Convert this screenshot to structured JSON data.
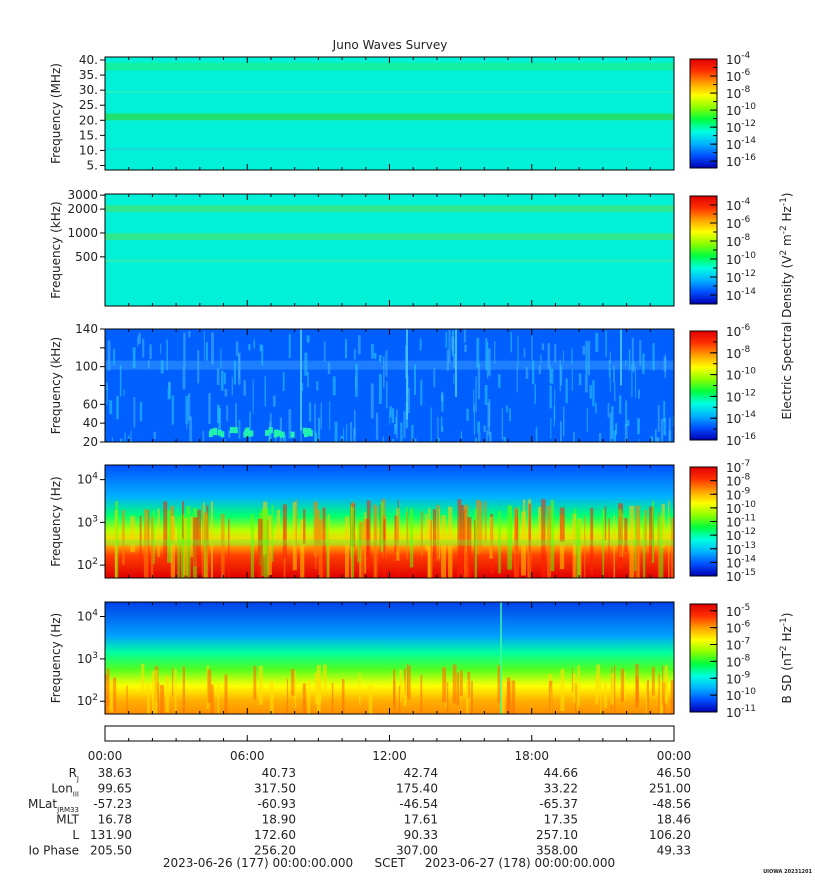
{
  "title": "Juno Waves Survey",
  "colors": {
    "background": "#ffffff",
    "frame": "#000000",
    "text": "#222222"
  },
  "colormap": [
    "#0000b4",
    "#0050ff",
    "#00b4ff",
    "#00ffe0",
    "#00ff40",
    "#8cff00",
    "#ffff00",
    "#ffa000",
    "#ff3000",
    "#e00000"
  ],
  "chart_data": [
    {
      "type": "heatmap",
      "name": "panel-1",
      "ylabel": "Frequency (MHz)",
      "yscale": "linear",
      "ylim": [
        3.5,
        41
      ],
      "yticks": [
        5,
        10,
        15,
        20,
        25,
        30,
        35,
        40
      ],
      "yticklabels": [
        "5.",
        "10.",
        "15.",
        "20.",
        "25.",
        "30.",
        "35.",
        "40."
      ],
      "colorbar": {
        "clim": [
          -16.8,
          -4
        ],
        "ticks": [
          {
            "label": "10",
            "exp": "-4",
            "v": -4
          },
          {
            "label": "10",
            "exp": "-6",
            "v": -6
          },
          {
            "label": "10",
            "exp": "-8",
            "v": -8
          },
          {
            "label": "10",
            "exp": "-10",
            "v": -10
          },
          {
            "label": "10",
            "exp": "-12",
            "v": -12
          },
          {
            "label": "10",
            "exp": "-14",
            "v": -14
          },
          {
            "label": "10",
            "exp": "-16",
            "v": -16
          }
        ],
        "label": ""
      }
    },
    {
      "type": "heatmap",
      "name": "panel-2",
      "ylabel": "Frequency (kHz)",
      "yscale": "log",
      "ylim": [
        120,
        3100
      ],
      "yticks": [
        500,
        1000,
        2000,
        3000
      ],
      "yticklabels": [
        "500",
        "1000",
        "2000",
        "3000"
      ],
      "colorbar": {
        "clim": [
          -15,
          -3
        ],
        "ticks": [
          {
            "label": "10",
            "exp": "-4",
            "v": -4
          },
          {
            "label": "10",
            "exp": "-6",
            "v": -6
          },
          {
            "label": "10",
            "exp": "-8",
            "v": -8
          },
          {
            "label": "10",
            "exp": "-10",
            "v": -10
          },
          {
            "label": "10",
            "exp": "-12",
            "v": -12
          },
          {
            "label": "10",
            "exp": "-14",
            "v": -14
          }
        ],
        "label": ""
      }
    },
    {
      "type": "heatmap",
      "name": "panel-3",
      "ylabel": "Frequency (kHz)",
      "yscale": "linear",
      "ylim": [
        20,
        140
      ],
      "yticks": [
        20,
        40,
        60,
        80,
        100,
        120,
        140
      ],
      "yticklabels": [
        "20",
        "40",
        "60",
        "",
        "100",
        "",
        "140"
      ],
      "colorbar": {
        "clim": [
          -16,
          -6
        ],
        "ticks": [
          {
            "label": "10",
            "exp": "-6",
            "v": -6
          },
          {
            "label": "10",
            "exp": "-8",
            "v": -8
          },
          {
            "label": "10",
            "exp": "-10",
            "v": -10
          },
          {
            "label": "10",
            "exp": "-12",
            "v": -12
          },
          {
            "label": "10",
            "exp": "-14",
            "v": -14
          },
          {
            "label": "10",
            "exp": "-16",
            "v": -16
          }
        ],
        "label": "Electric Spectral Density (V",
        "label_parts": [
          "Electric Spectral Density (V",
          "2",
          " m",
          "-2",
          " Hz",
          "-1",
          ")"
        ]
      }
    },
    {
      "type": "heatmap",
      "name": "panel-4",
      "ylabel": "Frequency (Hz)",
      "yscale": "log",
      "ylim": [
        50,
        22000
      ],
      "yticks": [
        100,
        1000,
        10000
      ],
      "yticklabels": [
        {
          "b": "10",
          "e": "2"
        },
        {
          "b": "10",
          "e": "3"
        },
        {
          "b": "10",
          "e": "4"
        }
      ],
      "colorbar": {
        "clim": [
          -15,
          -7
        ],
        "ticks": [
          {
            "label": "10",
            "exp": "-7",
            "v": -7
          },
          {
            "label": "10",
            "exp": "-8",
            "v": -8
          },
          {
            "label": "10",
            "exp": "-9",
            "v": -9
          },
          {
            "label": "10",
            "exp": "-10",
            "v": -10
          },
          {
            "label": "10",
            "exp": "-11",
            "v": -11
          },
          {
            "label": "10",
            "exp": "-12",
            "v": -12
          },
          {
            "label": "10",
            "exp": "-13",
            "v": -13
          },
          {
            "label": "10",
            "exp": "-14",
            "v": -14
          },
          {
            "label": "10",
            "exp": "-15",
            "v": -15
          }
        ],
        "label": ""
      }
    },
    {
      "type": "heatmap",
      "name": "panel-5",
      "ylabel": "Frequency (Hz)",
      "yscale": "log",
      "ylim": [
        50,
        22000
      ],
      "yticks": [
        100,
        1000,
        10000
      ],
      "yticklabels": [
        {
          "b": "10",
          "e": "2"
        },
        {
          "b": "10",
          "e": "3"
        },
        {
          "b": "10",
          "e": "4"
        }
      ],
      "colorbar": {
        "clim": [
          -11,
          -4.6
        ],
        "ticks": [
          {
            "label": "10",
            "exp": "-5",
            "v": -5
          },
          {
            "label": "10",
            "exp": "-6",
            "v": -6
          },
          {
            "label": "10",
            "exp": "-7",
            "v": -7
          },
          {
            "label": "10",
            "exp": "-8",
            "v": -8
          },
          {
            "label": "10",
            "exp": "-9",
            "v": -9
          },
          {
            "label": "10",
            "exp": "-10",
            "v": -10
          },
          {
            "label": "10",
            "exp": "-11",
            "v": -11
          }
        ],
        "label": "B SD (nT",
        "label_parts": [
          "B SD (nT",
          "2",
          " Hz",
          "-1",
          ")"
        ]
      }
    }
  ],
  "time_axis": {
    "xlim": [
      0,
      24
    ],
    "ticks": [
      0,
      6,
      12,
      18,
      24
    ],
    "ticklabels": [
      "00:00",
      "06:00",
      "12:00",
      "18:00",
      "00:00"
    ]
  },
  "ephemeris": [
    {
      "label": "R",
      "sub": "J",
      "values": [
        "38.63",
        "40.73",
        "42.74",
        "44.66",
        "46.50"
      ]
    },
    {
      "label": "Lon",
      "sub": "III",
      "values": [
        "99.65",
        "317.50",
        "175.40",
        "33.22",
        "251.00"
      ]
    },
    {
      "label": "MLat",
      "sub": "JRM33",
      "values": [
        "-57.23",
        "-60.93",
        "-46.54",
        "-65.37",
        "-48.56"
      ]
    },
    {
      "label": "MLT",
      "sub": "",
      "values": [
        "16.78",
        "18.90",
        "17.61",
        "17.35",
        "18.46"
      ]
    },
    {
      "label": "L",
      "sub": "",
      "values": [
        "131.90",
        "172.60",
        "90.33",
        "257.10",
        "106.20"
      ]
    },
    {
      "label": "Io Phase",
      "sub": "",
      "values": [
        "205.50",
        "256.20",
        "307.00",
        "358.00",
        "49.33"
      ]
    }
  ],
  "footer": {
    "start": "2023-06-26 (177) 00:00:00.000",
    "center": "SCET",
    "end": "2023-06-27 (178) 00:00:00.000"
  },
  "stamp": "UIOWA 20231201"
}
